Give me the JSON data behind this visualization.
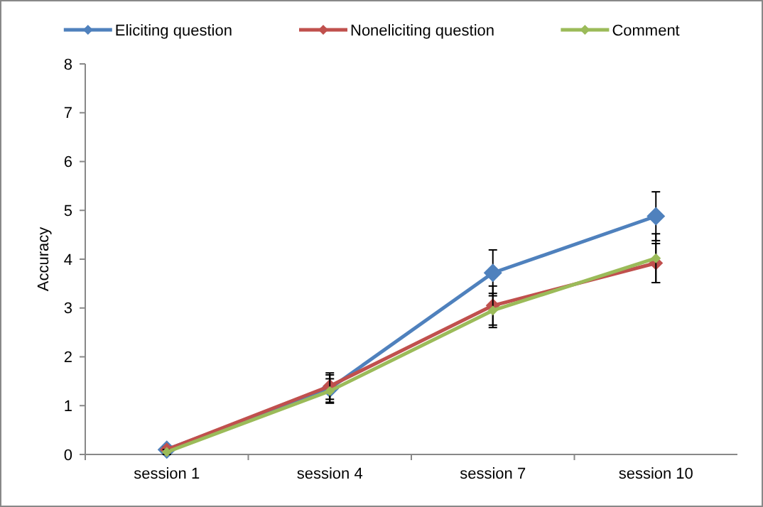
{
  "chart_data": {
    "type": "line",
    "ylabel": "Accuracy",
    "categories": [
      "session 1",
      "session 4",
      "session 7",
      "session 10"
    ],
    "ylim": [
      0,
      8
    ],
    "yticks": [
      0,
      1,
      2,
      3,
      4,
      5,
      6,
      7,
      8
    ],
    "grid": false,
    "legend": "top",
    "marker": "diamond",
    "line_style": "solid",
    "series": [
      {
        "name": "Eliciting question",
        "color": "#4f81bd",
        "values": [
          0.1,
          1.35,
          3.72,
          4.88
        ],
        "errors": [
          0.05,
          0.28,
          0.47,
          0.5
        ]
      },
      {
        "name": "Noneliciting question",
        "color": "#c0504d",
        "values": [
          0.1,
          1.4,
          3.05,
          3.92
        ],
        "errors": [
          0.05,
          0.27,
          0.4,
          0.4
        ]
      },
      {
        "name": "Comment",
        "color": "#9bbb59",
        "values": [
          0.05,
          1.3,
          2.95,
          4.02
        ],
        "errors": [
          0.05,
          0.25,
          0.35,
          0.5
        ]
      }
    ]
  }
}
